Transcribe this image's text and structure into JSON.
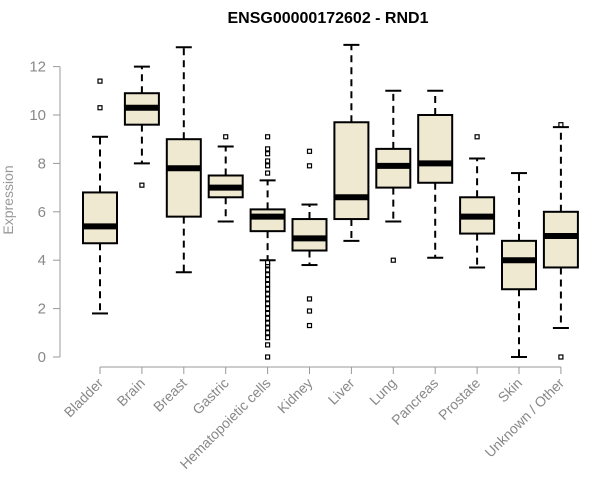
{
  "chart_data": {
    "type": "box",
    "title": "ENSG00000172602 - RND1",
    "ylabel": "Expression",
    "ylim": [
      0,
      13
    ],
    "yticks": [
      0,
      2,
      4,
      6,
      8,
      10,
      12
    ],
    "grid": false,
    "box_fill": "#efe9d1",
    "categories": [
      "Bladder",
      "Brain",
      "Breast",
      "Gastric",
      "Hematopoietic cells",
      "Kidney",
      "Liver",
      "Lung",
      "Pancreas",
      "Prostate",
      "Skin",
      "Unknown / Other"
    ],
    "boxes": [
      {
        "whislo": 1.8,
        "q1": 4.7,
        "med": 5.4,
        "q3": 6.8,
        "whishi": 9.1,
        "fliers": [
          10.3,
          11.4
        ]
      },
      {
        "whislo": 8.0,
        "q1": 9.6,
        "med": 10.3,
        "q3": 10.9,
        "whishi": 12.0,
        "fliers": [
          7.1
        ]
      },
      {
        "whislo": 3.5,
        "q1": 5.8,
        "med": 7.8,
        "q3": 9.0,
        "whishi": 12.8,
        "fliers": []
      },
      {
        "whislo": 5.6,
        "q1": 6.6,
        "med": 7.0,
        "q3": 7.5,
        "whishi": 8.7,
        "fliers": [
          9.1
        ]
      },
      {
        "whislo": 4.0,
        "q1": 5.2,
        "med": 5.8,
        "q3": 6.1,
        "whishi": 7.3,
        "fliers": [
          0.0,
          0.5,
          0.8,
          1.0,
          1.2,
          1.4,
          1.6,
          1.8,
          2.0,
          2.2,
          2.4,
          2.6,
          2.8,
          3.0,
          3.2,
          3.4,
          3.6,
          3.8,
          3.9,
          7.6,
          7.9,
          8.1,
          8.4,
          8.6,
          9.1
        ]
      },
      {
        "whislo": 3.8,
        "q1": 4.4,
        "med": 4.9,
        "q3": 5.7,
        "whishi": 6.3,
        "fliers": [
          1.3,
          1.9,
          2.4,
          7.9,
          8.5
        ]
      },
      {
        "whislo": 4.8,
        "q1": 5.7,
        "med": 6.6,
        "q3": 9.7,
        "whishi": 12.9,
        "fliers": []
      },
      {
        "whislo": 5.6,
        "q1": 7.0,
        "med": 7.9,
        "q3": 8.6,
        "whishi": 11.0,
        "fliers": [
          4.0
        ]
      },
      {
        "whislo": 4.1,
        "q1": 7.2,
        "med": 8.0,
        "q3": 10.0,
        "whishi": 11.0,
        "fliers": []
      },
      {
        "whislo": 3.7,
        "q1": 5.1,
        "med": 5.8,
        "q3": 6.6,
        "whishi": 8.2,
        "fliers": [
          9.1
        ]
      },
      {
        "whislo": 0.0,
        "q1": 2.8,
        "med": 4.0,
        "q3": 4.8,
        "whishi": 7.6,
        "fliers": []
      },
      {
        "whislo": 1.2,
        "q1": 3.7,
        "med": 5.0,
        "q3": 6.0,
        "whishi": 9.5,
        "fliers": [
          0.0,
          9.6
        ]
      }
    ]
  }
}
